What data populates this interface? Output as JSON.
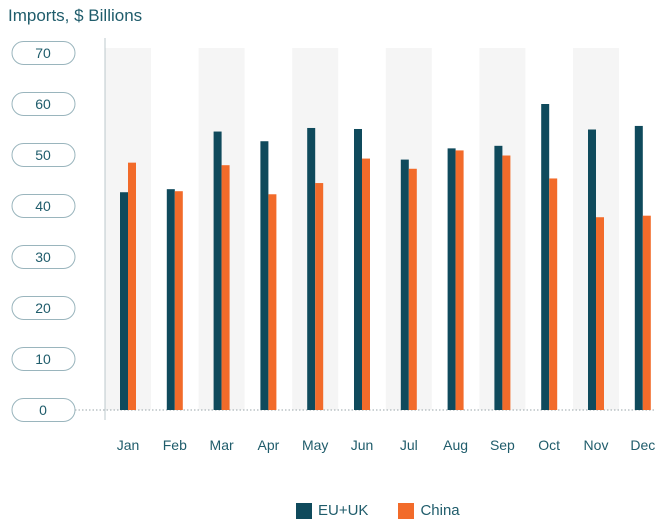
{
  "title": "Imports, $ Billions",
  "chart_data": {
    "type": "bar",
    "categories": [
      "Jan",
      "Feb",
      "Mar",
      "Apr",
      "May",
      "Jun",
      "Jul",
      "Aug",
      "Sep",
      "Oct",
      "Nov",
      "Dec"
    ],
    "series": [
      {
        "name": "EU+UK",
        "color": "#0f4a5c",
        "values": [
          42.7,
          43.3,
          54.6,
          52.7,
          55.3,
          55.1,
          49.1,
          51.3,
          51.8,
          60.0,
          55.0,
          55.7
        ]
      },
      {
        "name": "China",
        "color": "#f26b2a",
        "values": [
          48.5,
          42.9,
          48.0,
          42.3,
          44.5,
          49.3,
          47.3,
          50.9,
          49.9,
          45.4,
          37.8,
          38.1
        ]
      }
    ],
    "y_ticks": [
      0,
      10,
      20,
      30,
      40,
      50,
      60,
      70
    ],
    "ylim": [
      0,
      70
    ],
    "ylabel": "",
    "xlabel": "",
    "band_color": "#f5f5f5",
    "legend_position": "bottom"
  },
  "legend": {
    "eu_label": "EU+UK",
    "china_label": "China"
  }
}
